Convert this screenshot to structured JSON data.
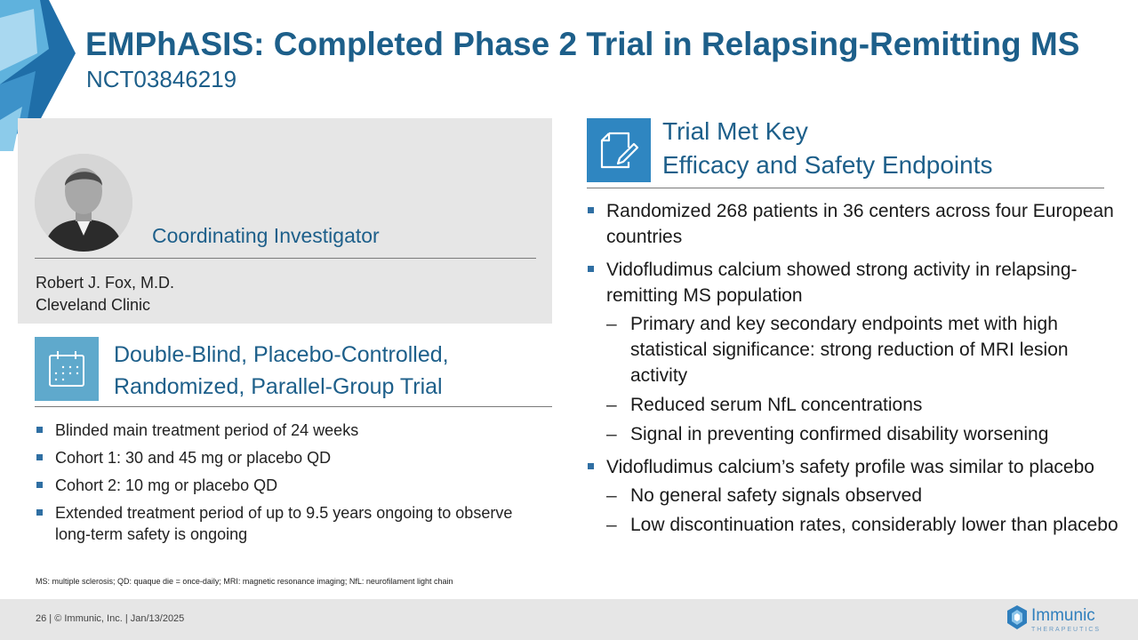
{
  "title": "EMPhASIS: Completed Phase 2 Trial in Relapsing-Remitting MS",
  "subtitle": "NCT03846219",
  "investigator": {
    "heading": "Coordinating Investigator",
    "name": "Robert J. Fox, M.D.",
    "institution": "Cleveland Clinic"
  },
  "trial_design": {
    "icon": "calendar-icon",
    "heading_line1": "Double-Blind, Placebo-Controlled,",
    "heading_line2": "Randomized, Parallel-Group Trial",
    "bullets": [
      "Blinded main treatment period of 24 weeks",
      "Cohort 1: 30 and 45 mg or placebo QD",
      "Cohort 2: 10 mg or placebo QD",
      "Extended treatment period of up to 9.5 years ongoing to observe long-term safety is ongoing"
    ]
  },
  "results": {
    "icon": "document-edit-icon",
    "heading_line1": "Trial Met Key",
    "heading_line2": "Efficacy and Safety Endpoints",
    "bullets": [
      {
        "text": "Randomized 268 patients in 36 centers across four European countries",
        "sub": []
      },
      {
        "text": "Vidofludimus calcium showed strong activity in relapsing-remitting MS population",
        "sub": [
          "Primary and key secondary endpoints met with high statistical significance: strong reduction of MRI lesion activity",
          "Reduced serum NfL concentrations",
          "Signal in preventing confirmed disability worsening"
        ]
      },
      {
        "text": "Vidofludimus calcium’s safety profile was similar to placebo",
        "sub": [
          "No general safety signals observed",
          "Low discontinuation rates, considerably lower than placebo"
        ]
      }
    ]
  },
  "footnote": "MS: multiple sclerosis; QD: quaque die = once-daily; MRI: magnetic resonance imaging; NfL: neurofilament light chain",
  "footer": {
    "text": "26  |  © Immunic, Inc.  | Jan/13/2025",
    "logo_name": "Immunic",
    "logo_tagline": "THERAPEUTICS"
  },
  "colors": {
    "accent": "#1d5f8a",
    "icon_bg": "#2f86c1",
    "panel_bg": "#e6e6e6"
  }
}
